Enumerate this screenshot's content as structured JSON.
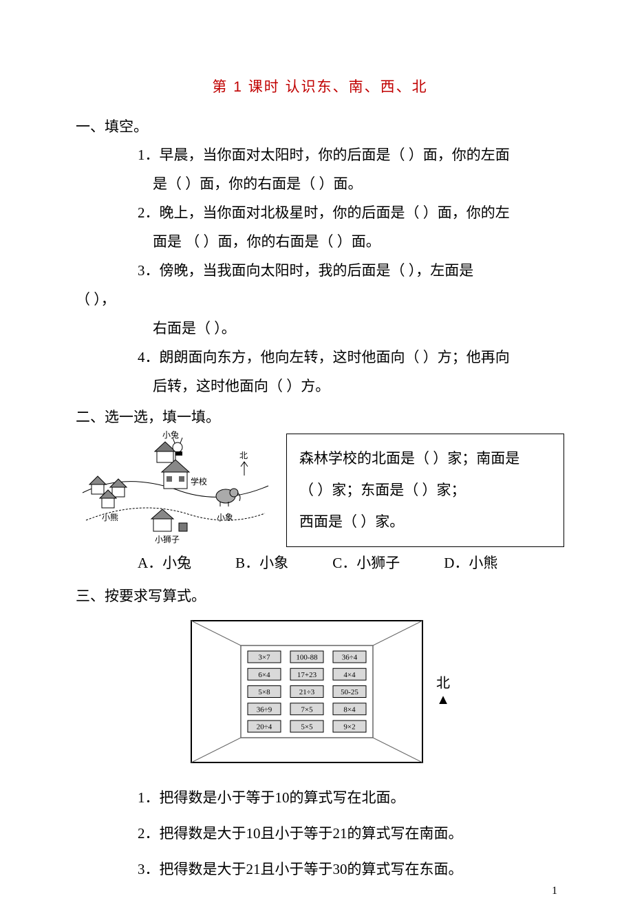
{
  "title": "第 1 课时  认识东、南、西、北",
  "section1": {
    "heading": "一、填空。",
    "items": [
      {
        "num": "1．",
        "line1": "早晨，当你面对太阳时，你的后面是（      ）面，你的左面",
        "line2": "是（      ）面，你的右面是（       ）面。"
      },
      {
        "num": "2．",
        "line1": "晚上，当你面对北极星时，你的后面是（      ）面，你的左",
        "line2": "面是 （      ）面，你的右面是（       ）面。"
      },
      {
        "num": "3．",
        "line1": "傍晚，当我面向太阳时，我的后面是（      ），左面是",
        "blankline": "（      ），",
        "line2b": "右面是（      ）。"
      },
      {
        "num": "4．",
        "line1": "朗朗面向东方，他向左转，这时他面向（      ）方；他再向",
        "line2": "后转，这时他面向（      ）方。"
      }
    ]
  },
  "section2": {
    "heading": "二、选一选，填一填。",
    "map": {
      "labels": {
        "rabbit": "小兔",
        "north": "北",
        "school": "学校",
        "bear": "小熊",
        "elephant": "小象",
        "lion": "小狮子"
      }
    },
    "box": {
      "line1": "森林学校的北面是（          ）家；南面是",
      "line2": "（          ）家；东面是（        ）家；",
      "line3": "西面是（          ）家。"
    },
    "options": {
      "a": "A．小兔",
      "b": "B．小象",
      "c": "C．小狮子",
      "d": "D．小熊"
    }
  },
  "section3": {
    "heading": "三、按要求写算式。",
    "grid": [
      [
        "3×7",
        "100-88",
        "36÷4"
      ],
      [
        "6×4",
        "17+23",
        "4×4"
      ],
      [
        "5×8",
        "21÷3",
        "50-25"
      ],
      [
        "36÷9",
        "7×5",
        "8×4"
      ],
      [
        "20÷4",
        "5×5",
        "9×2"
      ]
    ],
    "north": "北",
    "items": [
      "1．把得数是小于等于10的算式写在北面。",
      "2．把得数是大于10且小于等于21的算式写在南面。",
      "3．把得数是大于21且小于等于30的算式写在东面。"
    ]
  },
  "pageNumber": "1"
}
